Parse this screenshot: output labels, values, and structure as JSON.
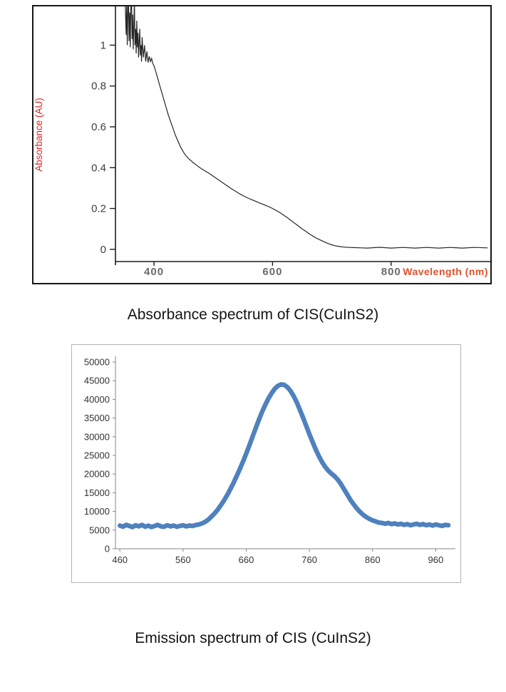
{
  "captions": {
    "absorbance": "Absorbance spectrum of CIS(CuInS2)",
    "emission": "Emission spectrum of CIS (CuInS2)"
  },
  "chart_data": [
    {
      "id": "absorbance",
      "type": "line",
      "title": "Absorbance spectrum of CIS(CuInS2)",
      "xlabel": "Wavelength (nm)",
      "ylabel": "Absorbance (AU)",
      "xlim": [
        335,
        965
      ],
      "ylim": [
        -0.06,
        1.19
      ],
      "x_ticks": [
        400,
        600,
        800
      ],
      "y_ticks": [
        0,
        0.2,
        0.4,
        0.6,
        0.8,
        1
      ],
      "grid": false,
      "legend": "none",
      "line_color": "#262626",
      "axis_color": "#1c1c1c",
      "tick_color_y": "#3f3f3f",
      "tick_color_x": "#6b6b6b",
      "xlabel_color": "#e0512e",
      "ylabel_color": "#e52222",
      "points": [
        [
          351,
          1.25
        ],
        [
          353,
          1.05
        ],
        [
          354,
          1.22
        ],
        [
          355,
          1.0
        ],
        [
          356,
          1.18
        ],
        [
          357,
          1.24
        ],
        [
          358,
          1.02
        ],
        [
          359,
          1.16
        ],
        [
          360,
          0.99
        ],
        [
          361,
          1.2
        ],
        [
          362,
          1.24
        ],
        [
          363,
          1.03
        ],
        [
          364,
          1.15
        ],
        [
          365,
          0.98
        ],
        [
          366,
          1.1
        ],
        [
          367,
          1.22
        ],
        [
          368,
          1.0
        ],
        [
          369,
          1.08
        ],
        [
          370,
          0.96
        ],
        [
          371,
          1.12
        ],
        [
          372,
          0.99
        ],
        [
          373,
          1.06
        ],
        [
          374,
          0.94
        ],
        [
          375,
          1.02
        ],
        [
          376,
          1.08
        ],
        [
          377,
          0.95
        ],
        [
          378,
          1.0
        ],
        [
          379,
          0.92
        ],
        [
          380,
          1.04
        ],
        [
          382,
          0.94
        ],
        [
          384,
          1.0
        ],
        [
          386,
          0.92
        ],
        [
          388,
          0.97
        ],
        [
          390,
          0.915
        ],
        [
          392,
          0.945
        ],
        [
          394,
          0.92
        ],
        [
          396,
          0.935
        ],
        [
          398,
          0.91
        ],
        [
          400,
          0.9
        ],
        [
          403,
          0.87
        ],
        [
          406,
          0.84
        ],
        [
          409,
          0.81
        ],
        [
          412,
          0.78
        ],
        [
          415,
          0.75
        ],
        [
          418,
          0.72
        ],
        [
          421,
          0.69
        ],
        [
          424,
          0.66
        ],
        [
          427,
          0.635
        ],
        [
          430,
          0.61
        ],
        [
          433,
          0.585
        ],
        [
          436,
          0.56
        ],
        [
          439,
          0.54
        ],
        [
          442,
          0.52
        ],
        [
          445,
          0.5
        ],
        [
          448,
          0.485
        ],
        [
          451,
          0.47
        ],
        [
          454,
          0.458
        ],
        [
          458,
          0.446
        ],
        [
          462,
          0.435
        ],
        [
          466,
          0.425
        ],
        [
          470,
          0.416
        ],
        [
          475,
          0.405
        ],
        [
          480,
          0.395
        ],
        [
          485,
          0.386
        ],
        [
          490,
          0.377
        ],
        [
          495,
          0.368
        ],
        [
          500,
          0.358
        ],
        [
          505,
          0.348
        ],
        [
          510,
          0.338
        ],
        [
          515,
          0.328
        ],
        [
          520,
          0.318
        ],
        [
          525,
          0.308
        ],
        [
          530,
          0.298
        ],
        [
          535,
          0.289
        ],
        [
          540,
          0.28
        ],
        [
          545,
          0.271
        ],
        [
          550,
          0.263
        ],
        [
          555,
          0.256
        ],
        [
          560,
          0.249
        ],
        [
          565,
          0.243
        ],
        [
          570,
          0.237
        ],
        [
          575,
          0.231
        ],
        [
          580,
          0.225
        ],
        [
          585,
          0.219
        ],
        [
          590,
          0.213
        ],
        [
          595,
          0.207
        ],
        [
          600,
          0.2
        ],
        [
          605,
          0.192
        ],
        [
          610,
          0.184
        ],
        [
          615,
          0.175
        ],
        [
          620,
          0.165
        ],
        [
          625,
          0.155
        ],
        [
          630,
          0.144
        ],
        [
          635,
          0.133
        ],
        [
          640,
          0.122
        ],
        [
          645,
          0.111
        ],
        [
          650,
          0.1
        ],
        [
          655,
          0.09
        ],
        [
          660,
          0.08
        ],
        [
          665,
          0.07
        ],
        [
          670,
          0.061
        ],
        [
          675,
          0.053
        ],
        [
          680,
          0.046
        ],
        [
          685,
          0.039
        ],
        [
          690,
          0.033
        ],
        [
          695,
          0.027
        ],
        [
          700,
          0.022
        ],
        [
          705,
          0.018
        ],
        [
          710,
          0.015
        ],
        [
          715,
          0.013
        ],
        [
          720,
          0.011
        ],
        [
          725,
          0.01
        ],
        [
          730,
          0.009
        ],
        [
          740,
          0.008
        ],
        [
          750,
          0.007
        ],
        [
          760,
          0.006
        ],
        [
          780,
          0.01
        ],
        [
          800,
          0.006
        ],
        [
          820,
          0.009
        ],
        [
          840,
          0.006
        ],
        [
          860,
          0.009
        ],
        [
          880,
          0.006
        ],
        [
          900,
          0.009
        ],
        [
          920,
          0.006
        ],
        [
          940,
          0.009
        ],
        [
          963,
          0.007
        ]
      ]
    },
    {
      "id": "emission",
      "type": "line",
      "title": "Emission spectrum of CIS (CuInS2)",
      "xlabel": "",
      "ylabel": "",
      "xlim": [
        453,
        990
      ],
      "ylim": [
        0,
        50000
      ],
      "x_ticks": [
        460,
        560,
        660,
        760,
        860,
        960
      ],
      "y_ticks": [
        0,
        5000,
        10000,
        15000,
        20000,
        25000,
        30000,
        35000,
        40000,
        45000,
        50000
      ],
      "grid": false,
      "legend": "none",
      "marker": "diamond",
      "line_color": "#4f81bd",
      "axis_color": "#868686",
      "tick_color": "#333333",
      "peak_wavelength": 715,
      "peak_intensity": 44000,
      "points": [
        [
          460,
          6200
        ],
        [
          465,
          5900
        ],
        [
          470,
          6400
        ],
        [
          475,
          6100
        ],
        [
          480,
          5800
        ],
        [
          485,
          6300
        ],
        [
          490,
          6000
        ],
        [
          495,
          6400
        ],
        [
          500,
          5900
        ],
        [
          505,
          6200
        ],
        [
          510,
          5800
        ],
        [
          515,
          6100
        ],
        [
          520,
          6400
        ],
        [
          525,
          6000
        ],
        [
          530,
          5900
        ],
        [
          535,
          6300
        ],
        [
          540,
          6000
        ],
        [
          545,
          6200
        ],
        [
          550,
          5900
        ],
        [
          555,
          6100
        ],
        [
          560,
          6300
        ],
        [
          565,
          6000
        ],
        [
          570,
          6200
        ],
        [
          575,
          6100
        ],
        [
          580,
          6350
        ],
        [
          585,
          6500
        ],
        [
          590,
          6800
        ],
        [
          595,
          7200
        ],
        [
          600,
          7800
        ],
        [
          605,
          8600
        ],
        [
          610,
          9500
        ],
        [
          615,
          10500
        ],
        [
          620,
          11700
        ],
        [
          625,
          13000
        ],
        [
          630,
          14400
        ],
        [
          635,
          16000
        ],
        [
          640,
          17700
        ],
        [
          645,
          19500
        ],
        [
          650,
          21400
        ],
        [
          655,
          23400
        ],
        [
          660,
          25500
        ],
        [
          665,
          27700
        ],
        [
          670,
          30000
        ],
        [
          675,
          32300
        ],
        [
          680,
          34500
        ],
        [
          685,
          36600
        ],
        [
          690,
          38500
        ],
        [
          695,
          40200
        ],
        [
          700,
          41600
        ],
        [
          705,
          42800
        ],
        [
          710,
          43600
        ],
        [
          715,
          44000
        ],
        [
          720,
          43900
        ],
        [
          725,
          43300
        ],
        [
          730,
          42300
        ],
        [
          735,
          40900
        ],
        [
          740,
          39200
        ],
        [
          745,
          37200
        ],
        [
          750,
          35100
        ],
        [
          755,
          32900
        ],
        [
          760,
          30700
        ],
        [
          765,
          28600
        ],
        [
          770,
          26600
        ],
        [
          775,
          24800
        ],
        [
          780,
          23200
        ],
        [
          785,
          21900
        ],
        [
          790,
          20900
        ],
        [
          795,
          20100
        ],
        [
          800,
          19400
        ],
        [
          805,
          18500
        ],
        [
          810,
          17300
        ],
        [
          815,
          15900
        ],
        [
          820,
          14500
        ],
        [
          825,
          13100
        ],
        [
          830,
          11900
        ],
        [
          835,
          10800
        ],
        [
          840,
          9900
        ],
        [
          845,
          9100
        ],
        [
          850,
          8500
        ],
        [
          855,
          8000
        ],
        [
          860,
          7600
        ],
        [
          865,
          7300
        ],
        [
          870,
          7000
        ],
        [
          875,
          6900
        ],
        [
          880,
          6700
        ],
        [
          885,
          6900
        ],
        [
          890,
          6600
        ],
        [
          895,
          6800
        ],
        [
          900,
          6500
        ],
        [
          905,
          6700
        ],
        [
          910,
          6400
        ],
        [
          915,
          6600
        ],
        [
          920,
          6300
        ],
        [
          925,
          6500
        ],
        [
          930,
          6700
        ],
        [
          935,
          6400
        ],
        [
          940,
          6600
        ],
        [
          945,
          6300
        ],
        [
          950,
          6500
        ],
        [
          955,
          6200
        ],
        [
          960,
          6500
        ],
        [
          965,
          6300
        ],
        [
          970,
          6100
        ],
        [
          975,
          6400
        ],
        [
          980,
          6300
        ]
      ]
    }
  ]
}
